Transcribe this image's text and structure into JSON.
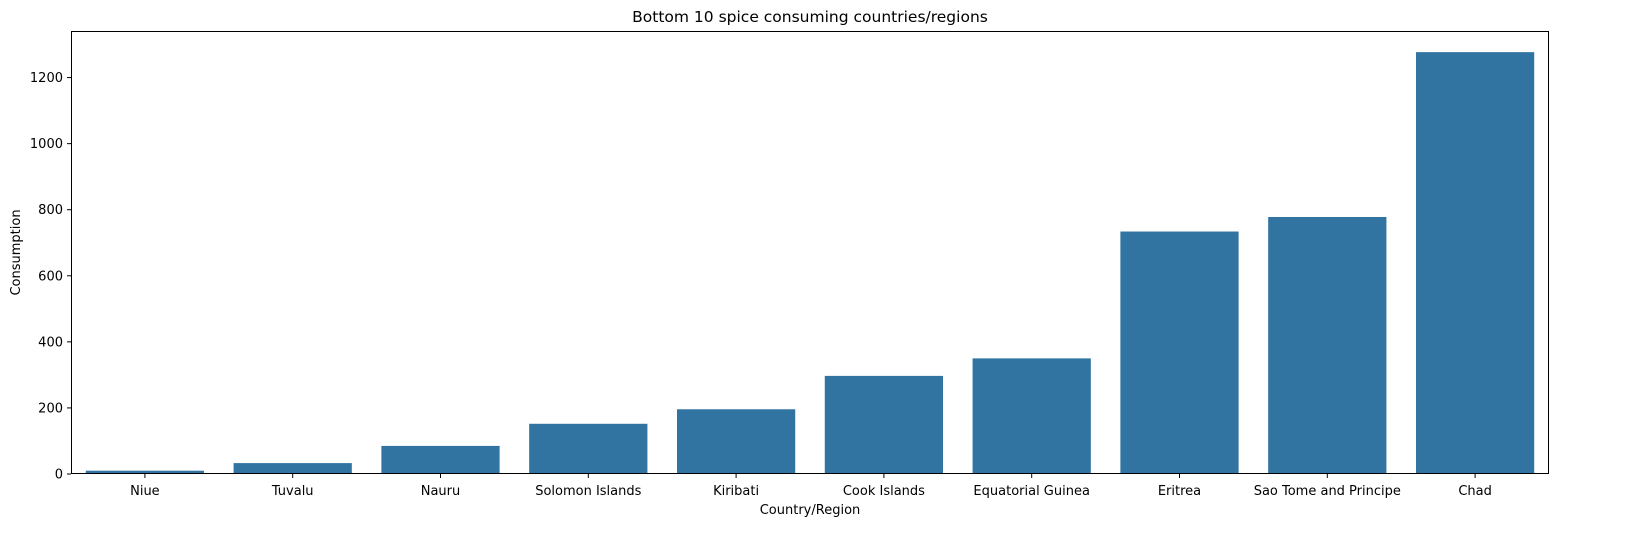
{
  "chart_data": {
    "type": "bar",
    "title": "Bottom 10 spice consuming countries/regions",
    "xlabel": "Country/Region",
    "ylabel": "Consumption",
    "categories": [
      "Niue",
      "Tuvalu",
      "Nauru",
      "Solomon Islands",
      "Kiribati",
      "Cook Islands",
      "Equatorial Guinea",
      "Eritrea",
      "Sao Tome and Principe",
      "Chad"
    ],
    "values": [
      10,
      33,
      85,
      152,
      196,
      297,
      350,
      734,
      778,
      1277
    ],
    "ylim": [
      0,
      1341
    ],
    "yticks": [
      0,
      200,
      400,
      600,
      800,
      1000,
      1200
    ],
    "grid": false,
    "bar_color": "#3274a1"
  }
}
